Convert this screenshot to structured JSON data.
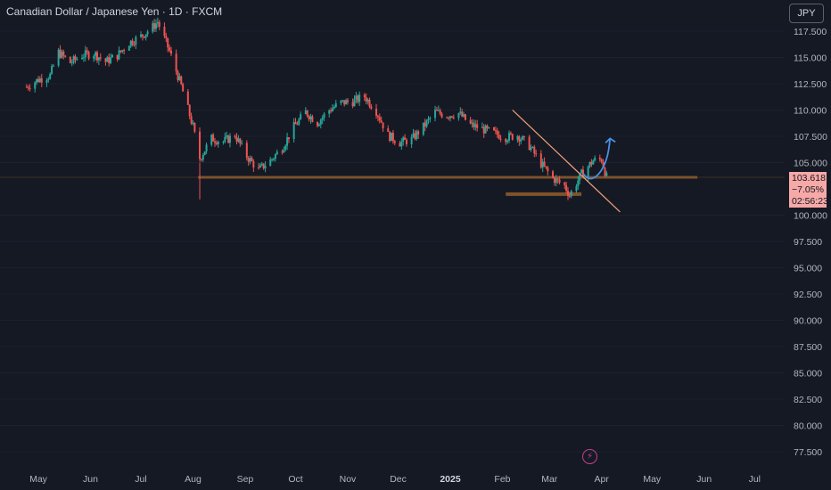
{
  "header": {
    "title": "Canadian Dollar / Japanese Yen · 1D · FXCM",
    "currency_button": "JPY"
  },
  "price_label": {
    "price": "103.618",
    "change": "−7.05%",
    "countdown": "02:56:23"
  },
  "colors": {
    "background": "#151924",
    "up": "#26a69a",
    "down": "#ef5350",
    "support": "#8b5a2b",
    "trendline": "#f5a07a",
    "projection": "#4a90e2",
    "price_label_bg": "#f7a9a7"
  },
  "chart_data": {
    "type": "candlestick",
    "title": "Canadian Dollar / Japanese Yen · 1D · FXCM",
    "y_ticks": [
      "117.500",
      "115.000",
      "112.500",
      "110.000",
      "107.500",
      "105.000",
      "100.000",
      "97.500",
      "95.000",
      "92.500",
      "90.000",
      "87.500",
      "85.000",
      "82.500",
      "80.000",
      "77.500"
    ],
    "ylim": [
      76.5,
      120.0
    ],
    "x_ticks": [
      "May",
      "Jun",
      "Jul",
      "Aug",
      "Sep",
      "Oct",
      "Nov",
      "Dec",
      "2025",
      "Feb",
      "Mar",
      "Apr",
      "May",
      "Jun",
      "Jul"
    ],
    "x_bold": "2025",
    "series": [
      {
        "name": "CADJPY",
        "close_path": [
          [
            "2024-04-24",
            112.2
          ],
          [
            "2024-05-01",
            112.9
          ],
          [
            "2024-05-08",
            113.3
          ],
          [
            "2024-05-13",
            115.5
          ],
          [
            "2024-05-20",
            114.5
          ],
          [
            "2024-05-27",
            115.2
          ],
          [
            "2024-06-03",
            115.4
          ],
          [
            "2024-06-10",
            114.6
          ],
          [
            "2024-06-17",
            115.2
          ],
          [
            "2024-06-24",
            116.4
          ],
          [
            "2024-07-01",
            117.0
          ],
          [
            "2024-07-08",
            117.9
          ],
          [
            "2024-07-11",
            118.4
          ],
          [
            "2024-07-18",
            115.6
          ],
          [
            "2024-07-25",
            112.3
          ],
          [
            "2024-08-01",
            108.4
          ],
          [
            "2024-08-05",
            105.4
          ],
          [
            "2024-08-12",
            107.3
          ],
          [
            "2024-08-19",
            107.0
          ],
          [
            "2024-08-26",
            107.6
          ],
          [
            "2024-09-02",
            105.6
          ],
          [
            "2024-09-09",
            104.3
          ],
          [
            "2024-09-16",
            105.2
          ],
          [
            "2024-09-23",
            106.4
          ],
          [
            "2024-09-30",
            108.4
          ],
          [
            "2024-10-07",
            109.8
          ],
          [
            "2024-10-14",
            108.8
          ],
          [
            "2024-10-21",
            110.0
          ],
          [
            "2024-10-28",
            110.7
          ],
          [
            "2024-11-04",
            110.8
          ],
          [
            "2024-11-11",
            111.3
          ],
          [
            "2024-11-18",
            109.9
          ],
          [
            "2024-11-25",
            107.6
          ],
          [
            "2024-12-02",
            106.9
          ],
          [
            "2024-12-09",
            107.2
          ],
          [
            "2024-12-16",
            108.4
          ],
          [
            "2024-12-23",
            109.8
          ],
          [
            "2024-12-30",
            109.5
          ],
          [
            "2025-01-06",
            109.7
          ],
          [
            "2025-01-13",
            108.6
          ],
          [
            "2025-01-20",
            108.2
          ],
          [
            "2025-01-27",
            107.8
          ],
          [
            "2025-02-03",
            107.4
          ],
          [
            "2025-02-10",
            107.6
          ],
          [
            "2025-02-17",
            106.6
          ],
          [
            "2025-02-24",
            104.9
          ],
          [
            "2025-03-03",
            103.5
          ],
          [
            "2025-03-10",
            102.8
          ],
          [
            "2025-03-13",
            101.9
          ],
          [
            "2025-03-20",
            103.9
          ],
          [
            "2025-03-27",
            105.2
          ],
          [
            "2025-04-01",
            105.3
          ],
          [
            "2025-04-04",
            103.6
          ]
        ]
      }
    ],
    "annotations": [
      {
        "type": "horizontal_line",
        "label": "support",
        "price": 103.6
      },
      {
        "type": "horizontal_zone",
        "label": "lower zone",
        "price": 102.0
      },
      {
        "type": "trendline",
        "from": [
          "2025-02-07",
          110.0
        ],
        "to": [
          "2025-04-12",
          100.3
        ]
      },
      {
        "type": "projection_arrow",
        "from": [
          "2025-03-22",
          103.3
        ],
        "to": [
          "2025-04-06",
          107.3
        ]
      }
    ]
  },
  "bottom_icon": "lightning-icon"
}
